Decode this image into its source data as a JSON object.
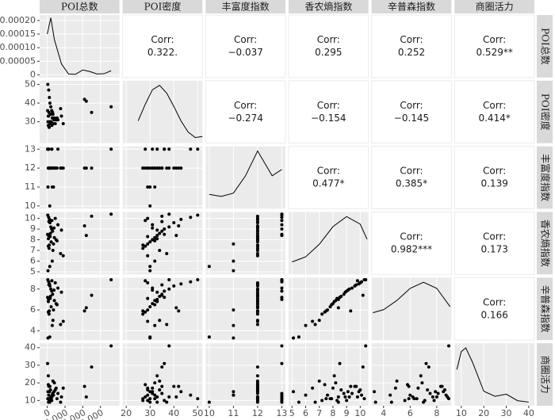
{
  "chart_data": {
    "type": "pairs",
    "corr_label": "Corr:",
    "correlations": [
      [
        "0.322.",
        "−0.037",
        "0.295",
        "0.252",
        "0.529**"
      ],
      [
        "−0.274",
        "−0.154",
        "−0.145",
        "0.414*"
      ],
      [
        "0.477*",
        "0.385*",
        "0.139"
      ],
      [
        "0.982***",
        "0.173"
      ],
      [
        "0.166"
      ]
    ],
    "point_color": "#000000",
    "density_color": "#000000",
    "grid": true,
    "variables": [
      {
        "name": "POI总数",
        "lim": [
          -4300,
          40700
        ],
        "xticks": [
          0,
          {
            "value": 10000,
            "label": "10 000"
          },
          {
            "value": 20000,
            "label": "20 000"
          },
          {
            "value": 30000,
            "label": "30 000"
          }
        ],
        "density_ylim": [
          -1e-05,
          0.00022
        ],
        "density_yticks": [
          {
            "value": 0,
            "label": "0"
          },
          {
            "value": 5e-05,
            "label": "0.00005"
          },
          {
            "value": 0.0001,
            "label": "0.00010"
          },
          {
            "value": 0.00015,
            "label": "0.00015"
          },
          {
            "value": 0.0002,
            "label": "0.00020"
          }
        ],
        "density_x": [
          0,
          2000,
          4000,
          8000,
          12000,
          16000,
          20000,
          24000,
          28000,
          32000,
          36000
        ],
        "density": [
          0.00015,
          0.00021,
          0.00013,
          4e-05,
          3e-06,
          2e-06,
          1.8e-05,
          1.2e-05,
          3e-06,
          4e-06,
          1.5e-05
        ],
        "values": [
          300,
          800,
          1200,
          1500,
          2000,
          2500,
          3000,
          1800,
          700,
          4000,
          5000,
          2200,
          3500,
          600,
          1000,
          6000,
          8000,
          4500,
          1400,
          2800,
          3200,
          900,
          200,
          7500,
          400,
          5500,
          2600,
          1600,
          3800,
          21000,
          22000,
          25000,
          36000,
          600,
          1100,
          9000
        ]
      },
      {
        "name": "POI密度",
        "lim": [
          18.5,
          52
        ],
        "xticks": [
          20,
          30,
          40,
          50
        ],
        "yticks": [
          30,
          40,
          50
        ],
        "density_x": [
          25,
          28,
          31,
          34,
          37,
          40,
          43,
          46,
          49,
          52
        ],
        "density": [
          0.02,
          0.035,
          0.048,
          0.052,
          0.045,
          0.033,
          0.02,
          0.01,
          0.005,
          0.006
        ],
        "values": [
          50,
          47,
          43,
          40,
          38,
          36,
          35,
          34,
          33,
          32,
          31,
          30,
          29,
          28,
          27,
          31,
          33,
          29,
          30,
          32,
          34,
          35,
          36,
          37,
          30,
          32,
          28,
          29,
          31,
          42,
          41,
          35,
          38,
          33,
          27,
          29
        ]
      },
      {
        "name": "丰富度指数",
        "lim": [
          9.85,
          13.15
        ],
        "xticks": [
          10,
          11,
          12,
          13
        ],
        "yticks": [
          10,
          11,
          12,
          13
        ],
        "density_x": [
          10,
          10.5,
          11,
          11.5,
          12,
          12.3,
          12.6,
          13
        ],
        "density": [
          0.35,
          0.3,
          0.38,
          0.8,
          1.4,
          1.1,
          0.8,
          0.95
        ],
        "values": [
          13,
          13,
          12,
          12,
          12,
          13,
          12,
          12,
          13,
          12,
          12,
          12,
          11,
          12,
          12,
          13,
          12,
          12,
          10,
          11,
          12,
          12,
          13,
          12,
          11,
          12,
          13,
          12,
          12,
          12,
          12,
          12,
          13,
          12,
          12,
          12
        ]
      },
      {
        "name": "香农熵指数",
        "lim": [
          4.75,
          10.6
        ],
        "xticks": [
          5,
          6,
          7,
          8,
          9,
          10
        ],
        "yticks": [
          5,
          6,
          7,
          8,
          9,
          10
        ],
        "density_x": [
          5,
          6,
          7,
          8,
          9,
          10,
          10.5
        ],
        "density": [
          0.05,
          0.07,
          0.12,
          0.19,
          0.23,
          0.2,
          0.14
        ],
        "values": [
          10.3,
          10.1,
          9.9,
          9.6,
          9.2,
          9.0,
          8.8,
          8.6,
          8.4,
          8.2,
          8.0,
          7.8,
          7.6,
          7.4,
          7.2,
          9.4,
          8.9,
          10.0,
          5.5,
          6.0,
          7.0,
          9.7,
          8.5,
          6.7,
          5.1,
          7.9,
          9.8,
          8.3,
          9.1,
          9.3,
          8.4,
          10.2,
          10.4,
          8.1,
          7.5,
          6.5
        ]
      },
      {
        "name": "辛普森指数",
        "lim": [
          3.1,
          9.1
        ],
        "xticks": [
          4,
          6,
          8
        ],
        "yticks": [
          4,
          6,
          8
        ],
        "density_x": [
          3.2,
          4,
          5,
          6,
          7,
          8,
          9
        ],
        "density": [
          0.09,
          0.1,
          0.13,
          0.17,
          0.19,
          0.17,
          0.11
        ],
        "values": [
          8.9,
          8.7,
          8.5,
          8.3,
          8.0,
          7.8,
          7.5,
          7.3,
          7.0,
          6.9,
          6.6,
          6.3,
          6.0,
          5.8,
          5.6,
          8.1,
          7.7,
          8.6,
          3.4,
          4.5,
          5.0,
          8.4,
          7.2,
          4.6,
          3.3,
          6.5,
          8.8,
          7.1,
          7.9,
          5.9,
          6.2,
          7.4,
          8.9,
          6.8,
          5.9,
          4.9
        ]
      },
      {
        "name": "商圈活力",
        "lim": [
          7,
          42.5
        ],
        "xticks": [
          10,
          20,
          30,
          40
        ],
        "yticks": [
          10,
          20,
          30,
          40
        ],
        "density_x": [
          8,
          10,
          12,
          15,
          20,
          25,
          30,
          35,
          40
        ],
        "density": [
          0.05,
          0.075,
          0.08,
          0.06,
          0.02,
          0.013,
          0.016,
          0.007,
          0.005
        ],
        "values": [
          11,
          13,
          15,
          18,
          12,
          10,
          14,
          16,
          9,
          20,
          17,
          11,
          13,
          19,
          10,
          14,
          12,
          16,
          9,
          13,
          21,
          18,
          31,
          9,
          15,
          11,
          12,
          10,
          15,
          18,
          12,
          29,
          41,
          24,
          11,
          17
        ]
      }
    ]
  }
}
